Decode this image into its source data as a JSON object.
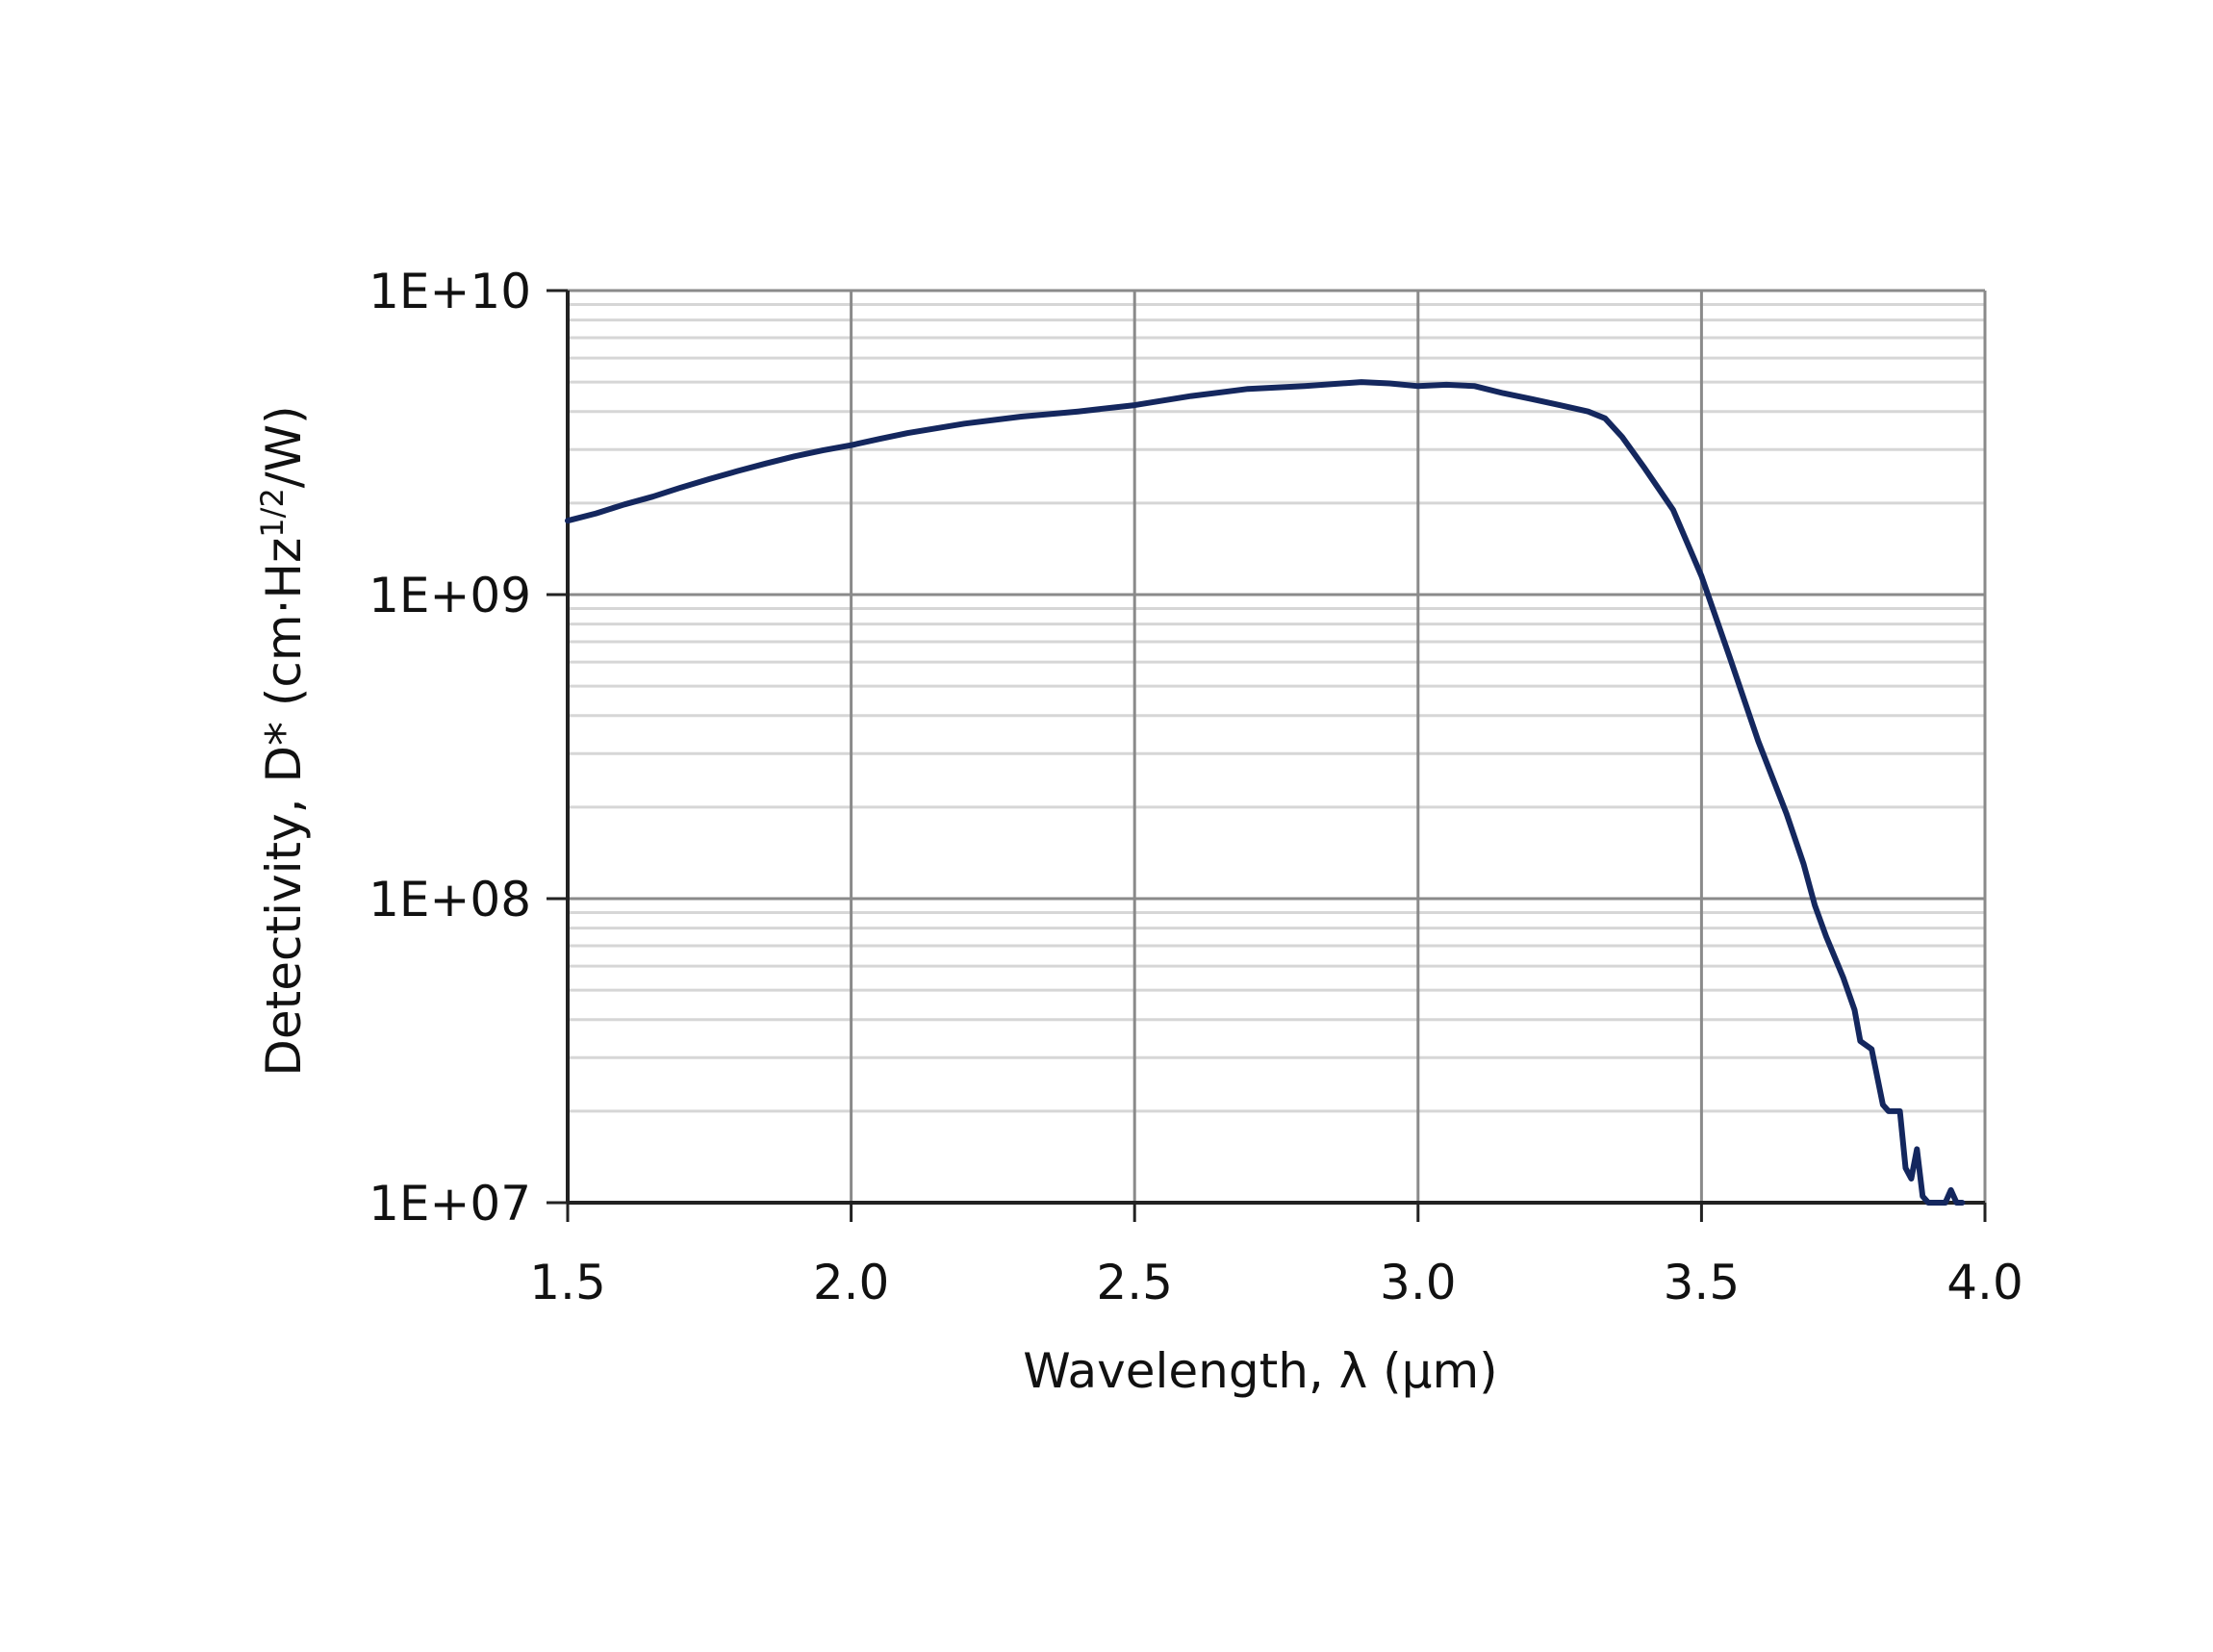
{
  "chart_data": {
    "type": "line",
    "xlabel": "Wavelength, λ (µm)",
    "ylabel": {
      "prefix": "Detectivity, D* (cm·Hz",
      "superscript": "1/2",
      "suffix": "/W)"
    },
    "xlim": [
      1.5,
      4.0
    ],
    "ylim": [
      10000000,
      10000000000
    ],
    "yscale": "log",
    "grid": true,
    "x_tick_labels": [
      "1.5",
      "2.0",
      "2.5",
      "3.0",
      "3.5",
      "4.0"
    ],
    "y_tick_labels": [
      "1E+07",
      "1E+08",
      "1E+09",
      "1E+10"
    ],
    "line_color": "#14275e",
    "major_grid_color": "#8a8a8a",
    "minor_grid_color": "#d6d6d6",
    "series": [
      {
        "x": [
          1.5,
          1.55,
          1.6,
          1.65,
          1.7,
          1.75,
          1.8,
          1.85,
          1.9,
          1.95,
          2.0,
          2.05,
          2.1,
          2.2,
          2.3,
          2.4,
          2.5,
          2.6,
          2.7,
          2.8,
          2.9,
          2.95,
          3.0,
          3.05,
          3.1,
          3.15,
          3.2,
          3.25,
          3.3,
          3.33,
          3.36,
          3.4,
          3.45,
          3.5,
          3.55,
          3.6,
          3.65,
          3.68,
          3.7,
          3.72,
          3.75,
          3.77,
          3.78,
          3.8,
          3.82,
          3.83,
          3.85,
          3.86,
          3.87,
          3.88,
          3.89,
          3.9,
          3.91,
          3.92,
          3.93,
          3.94,
          3.95,
          3.96
        ],
        "y": [
          1750000000,
          1850000000,
          1980000000,
          2100000000,
          2250000000,
          2400000000,
          2550000000,
          2700000000,
          2850000000,
          2980000000,
          3100000000,
          3250000000,
          3400000000,
          3650000000,
          3850000000,
          4000000000,
          4200000000,
          4500000000,
          4750000000,
          4850000000,
          5000000000,
          4950000000,
          4850000000,
          4900000000,
          4850000000,
          4600000000,
          4400000000,
          4200000000,
          4000000000,
          3800000000,
          3300000000,
          2600000000,
          1900000000,
          1150000000,
          620000000,
          330000000,
          190000000,
          130000000,
          95000000,
          75000000,
          55000000,
          43000000,
          34000000,
          32000000,
          21000000,
          20000000,
          20000000,
          13000000,
          12000000,
          15000000,
          10500000,
          9000000,
          9300000,
          8800000,
          9200000,
          11000000,
          9500000,
          9000000
        ]
      }
    ]
  }
}
